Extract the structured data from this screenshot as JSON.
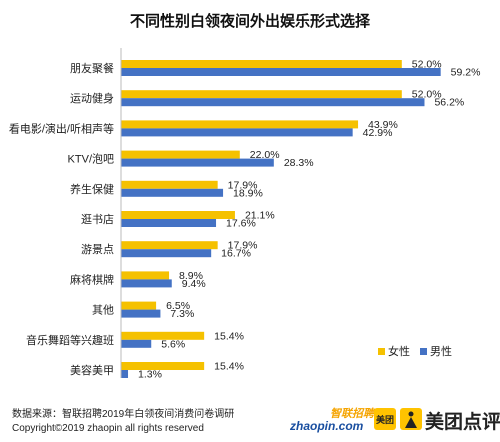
{
  "chart_data": {
    "type": "bar",
    "orientation": "horizontal",
    "title": "不同性别白领夜间外出娱乐形式选择",
    "categories": [
      "朋友聚餐",
      "运动健身",
      "看电影/演出/听相声等",
      "KTV/泡吧",
      "养生保健",
      "逛书店",
      "游景点",
      "麻将棋牌",
      "其他",
      "音乐舞蹈等兴趣班",
      "美容美甲"
    ],
    "series": [
      {
        "name": "女性",
        "color": "#f5c100",
        "values": [
          52.0,
          52.0,
          43.9,
          22.0,
          17.9,
          21.1,
          17.9,
          8.9,
          6.5,
          15.4,
          15.4
        ]
      },
      {
        "name": "男性",
        "color": "#4472c4",
        "values": [
          59.2,
          56.2,
          42.9,
          28.3,
          18.9,
          17.6,
          16.7,
          9.4,
          7.3,
          5.6,
          1.3
        ]
      }
    ],
    "value_suffix": "%",
    "legend_position": "bottom-right",
    "grid": false
  },
  "footer": {
    "source": "数据来源：智联招聘2019年白领夜间消费问卷调研",
    "copyright": "Copyright©2019 zhaopin all rights reserved"
  },
  "logos": {
    "zhaopin_cn": "智联招聘",
    "zhaopin_en": "zhaopin.com",
    "meituan_badge": "美团",
    "dianping": "美团点评"
  }
}
